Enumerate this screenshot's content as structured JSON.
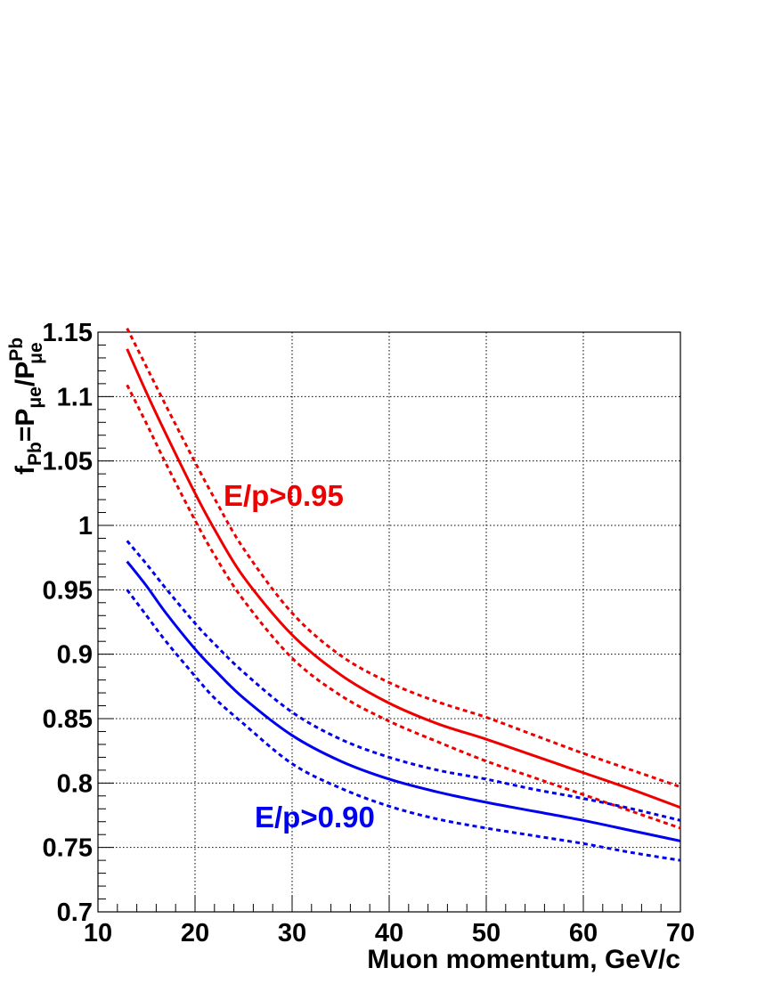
{
  "chart_data": {
    "type": "line",
    "xlabel": "Muon momentum, GeV/c",
    "ylabel": {
      "f": "f",
      "f_sub": "Pb",
      "eq": "=P",
      "p1_sub": "μe",
      "slash": "/P",
      "p2_sup": "Pb",
      "p2_sub": "μe"
    },
    "xlim": [
      10,
      70
    ],
    "ylim": [
      0.7,
      1.15
    ],
    "x_ticks": [
      "10",
      "20",
      "30",
      "40",
      "50",
      "60",
      "70"
    ],
    "y_ticks": [
      "0.7",
      "0.75",
      "0.8",
      "0.85",
      "0.9",
      "0.95",
      "1",
      "1.05",
      "1.1",
      "1.15"
    ],
    "grid": true,
    "annotations": [
      {
        "text": "E/p>0.95",
        "color": "#ee0000"
      },
      {
        "text": "E/p>0.90",
        "color": "#0000ee"
      }
    ],
    "series": [
      {
        "group": "E/p>0.95",
        "style": "solid",
        "color": "#ee0000",
        "x": [
          13,
          15,
          17,
          20,
          22,
          25,
          30,
          35,
          40,
          45,
          50,
          55,
          60,
          65,
          70
        ],
        "y": [
          1.137,
          1.103,
          1.071,
          1.025,
          0.997,
          0.96,
          0.915,
          0.884,
          0.862,
          0.846,
          0.834,
          0.821,
          0.808,
          0.795,
          0.781
        ]
      },
      {
        "group": "E/p>0.95",
        "style": "dotted",
        "color": "#ee0000",
        "x": [
          13,
          15,
          17,
          20,
          22,
          25,
          30,
          35,
          40,
          45,
          50,
          55,
          60,
          65,
          70
        ],
        "y": [
          1.153,
          1.123,
          1.093,
          1.049,
          1.021,
          0.982,
          0.932,
          0.899,
          0.878,
          0.863,
          0.851,
          0.837,
          0.823,
          0.81,
          0.797
        ]
      },
      {
        "group": "E/p>0.95",
        "style": "dotted",
        "color": "#ee0000",
        "x": [
          13,
          15,
          17,
          20,
          22,
          25,
          30,
          35,
          40,
          45,
          50,
          55,
          60,
          65,
          70
        ],
        "y": [
          1.109,
          1.079,
          1.048,
          1.004,
          0.977,
          0.942,
          0.897,
          0.868,
          0.848,
          0.832,
          0.817,
          0.804,
          0.791,
          0.778,
          0.765
        ]
      },
      {
        "group": "E/p>0.90",
        "style": "solid",
        "color": "#0000ee",
        "x": [
          13,
          15,
          17,
          20,
          22,
          25,
          30,
          35,
          40,
          45,
          50,
          55,
          60,
          65,
          70
        ],
        "y": [
          0.972,
          0.953,
          0.932,
          0.904,
          0.888,
          0.866,
          0.837,
          0.817,
          0.803,
          0.793,
          0.785,
          0.778,
          0.771,
          0.763,
          0.755
        ]
      },
      {
        "group": "E/p>0.90",
        "style": "dotted",
        "color": "#0000ee",
        "x": [
          13,
          15,
          17,
          20,
          22,
          25,
          30,
          35,
          40,
          45,
          50,
          55,
          60,
          65,
          70
        ],
        "y": [
          0.988,
          0.97,
          0.951,
          0.924,
          0.908,
          0.886,
          0.855,
          0.834,
          0.82,
          0.81,
          0.803,
          0.795,
          0.788,
          0.78,
          0.771
        ]
      },
      {
        "group": "E/p>0.90",
        "style": "dotted",
        "color": "#0000ee",
        "x": [
          13,
          15,
          17,
          20,
          22,
          25,
          30,
          35,
          40,
          45,
          50,
          55,
          60,
          65,
          70
        ],
        "y": [
          0.95,
          0.93,
          0.91,
          0.883,
          0.866,
          0.846,
          0.815,
          0.796,
          0.782,
          0.772,
          0.765,
          0.759,
          0.753,
          0.746,
          0.74
        ]
      }
    ]
  }
}
